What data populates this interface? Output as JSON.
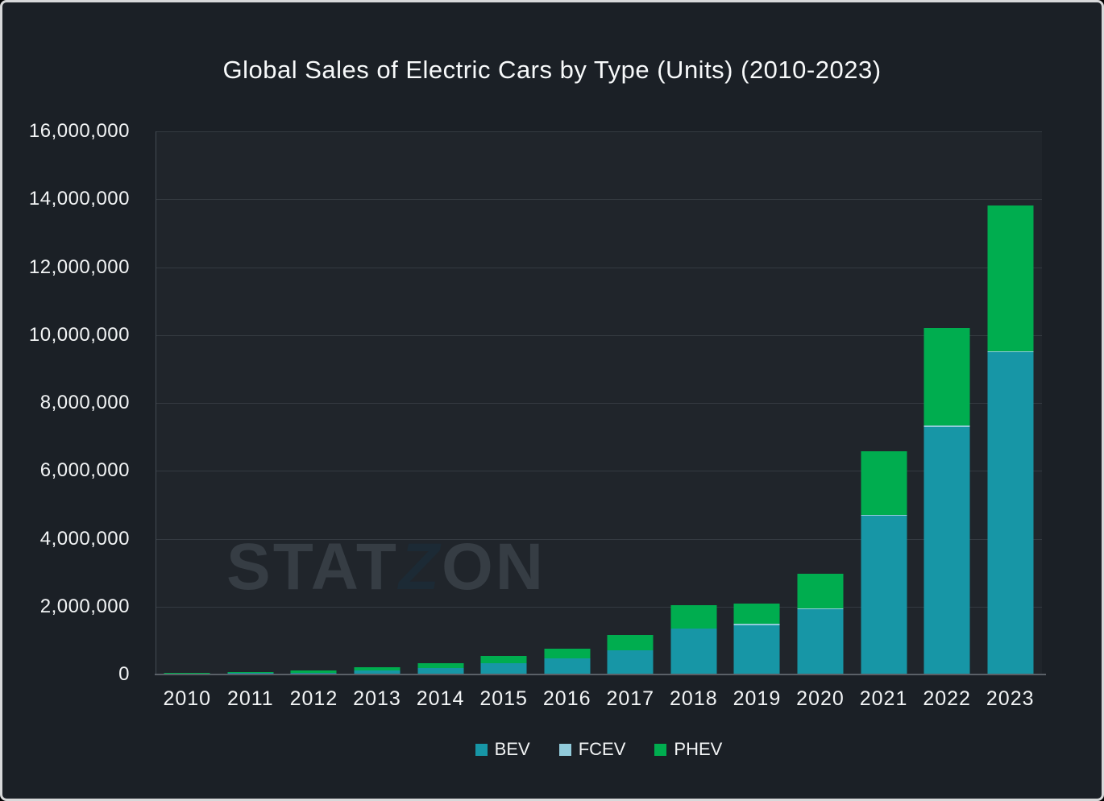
{
  "title": "Global Sales of Electric Cars by Type (Units) (2010-2023)",
  "watermark": {
    "stat": "STAT",
    "z": "Z",
    "on": "ON",
    "full": "STATZON"
  },
  "colors": {
    "background": "#1b2026",
    "plot_background": "#20252b",
    "border": "#d8d9da",
    "grid": "#343a41",
    "axis": "#5a6067",
    "text": "#f2f4f5",
    "bev": "#1796a6",
    "fcev": "#92cbdb",
    "phev": "#00ad4f",
    "watermark": "#363d44",
    "watermark_z": "#1c2a35"
  },
  "legend": [
    {
      "label": "BEV",
      "color": "#1796a6"
    },
    {
      "label": "FCEV",
      "color": "#92cbdb"
    },
    {
      "label": "PHEV",
      "color": "#00ad4f"
    }
  ],
  "chart_data": {
    "type": "bar",
    "stacked": true,
    "title": "Global Sales of Electric Cars by Type (Units) (2010-2023)",
    "categories": [
      "2010",
      "2011",
      "2012",
      "2013",
      "2014",
      "2015",
      "2016",
      "2017",
      "2018",
      "2019",
      "2020",
      "2021",
      "2022",
      "2023"
    ],
    "series": [
      {
        "name": "BEV",
        "color": "#1796a6",
        "values": [
          7400,
          39000,
          59000,
          112000,
          195000,
          327000,
          468000,
          720000,
          1345000,
          1460000,
          1930000,
          4680000,
          7300000,
          9500000
        ]
      },
      {
        "name": "FCEV",
        "color": "#92cbdb",
        "values": [
          0,
          0,
          0,
          0,
          0,
          0,
          0,
          0,
          0,
          25000,
          25000,
          30000,
          30000,
          30000
        ]
      },
      {
        "name": "PHEV",
        "color": "#00ad4f",
        "values": [
          400,
          9000,
          61000,
          91000,
          130000,
          222000,
          289000,
          445000,
          690000,
          600000,
          1010000,
          1870000,
          2870000,
          4280000
        ]
      }
    ],
    "ylabel": "",
    "xlabel": "",
    "ylim": [
      0,
      16000000
    ],
    "ytick_interval": 2000000,
    "ytick_labels": [
      "0",
      "2,000,000",
      "4,000,000",
      "6,000,000",
      "8,000,000",
      "10,000,000",
      "12,000,000",
      "14,000,000",
      "16,000,000"
    ],
    "grid": "horizontal",
    "legend_position": "bottom"
  }
}
